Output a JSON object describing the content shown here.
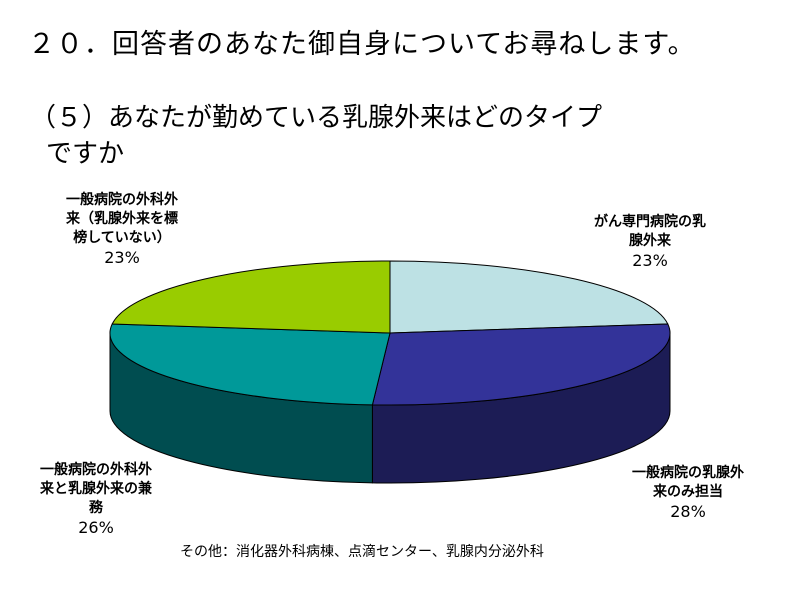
{
  "header": {
    "title": "２０．回答者のあなた御自身についてお尋ねします。",
    "subtitle_line1": "（５）あなたが勤めている乳腺外来はどのタイプ",
    "subtitle_line2": "ですか"
  },
  "chart_data": {
    "type": "pie",
    "style": "3d",
    "start_angle_deg": 0,
    "direction": "clockwise",
    "slices": [
      {
        "label_line1": "がん専門病院の乳",
        "label_line2": "腺外来",
        "value": 23,
        "pct_label": "23%",
        "top_color": "#bde1e4",
        "side_color": "#8aa9ab"
      },
      {
        "label_line1": "一般病院の乳腺外",
        "label_line2": "来のみ担当",
        "value": 28,
        "pct_label": "28%",
        "top_color": "#333399",
        "side_color": "#1c1c55"
      },
      {
        "label_line1": "一般病院の外科外",
        "label_line2": "来と乳腺外来の兼",
        "label_line3": "務",
        "value": 26,
        "pct_label": "26%",
        "top_color": "#009999",
        "side_color": "#004d50"
      },
      {
        "label_line1": "一般病院の外科外",
        "label_line2": "来（乳腺外来を標",
        "label_line3": "榜していない）",
        "value": 23,
        "pct_label": "23%",
        "top_color": "#99cc00",
        "side_color": "#5c7a00"
      }
    ]
  },
  "footnote": "その他：消化器外科病棟、点滴センター、乳腺内分泌外科"
}
